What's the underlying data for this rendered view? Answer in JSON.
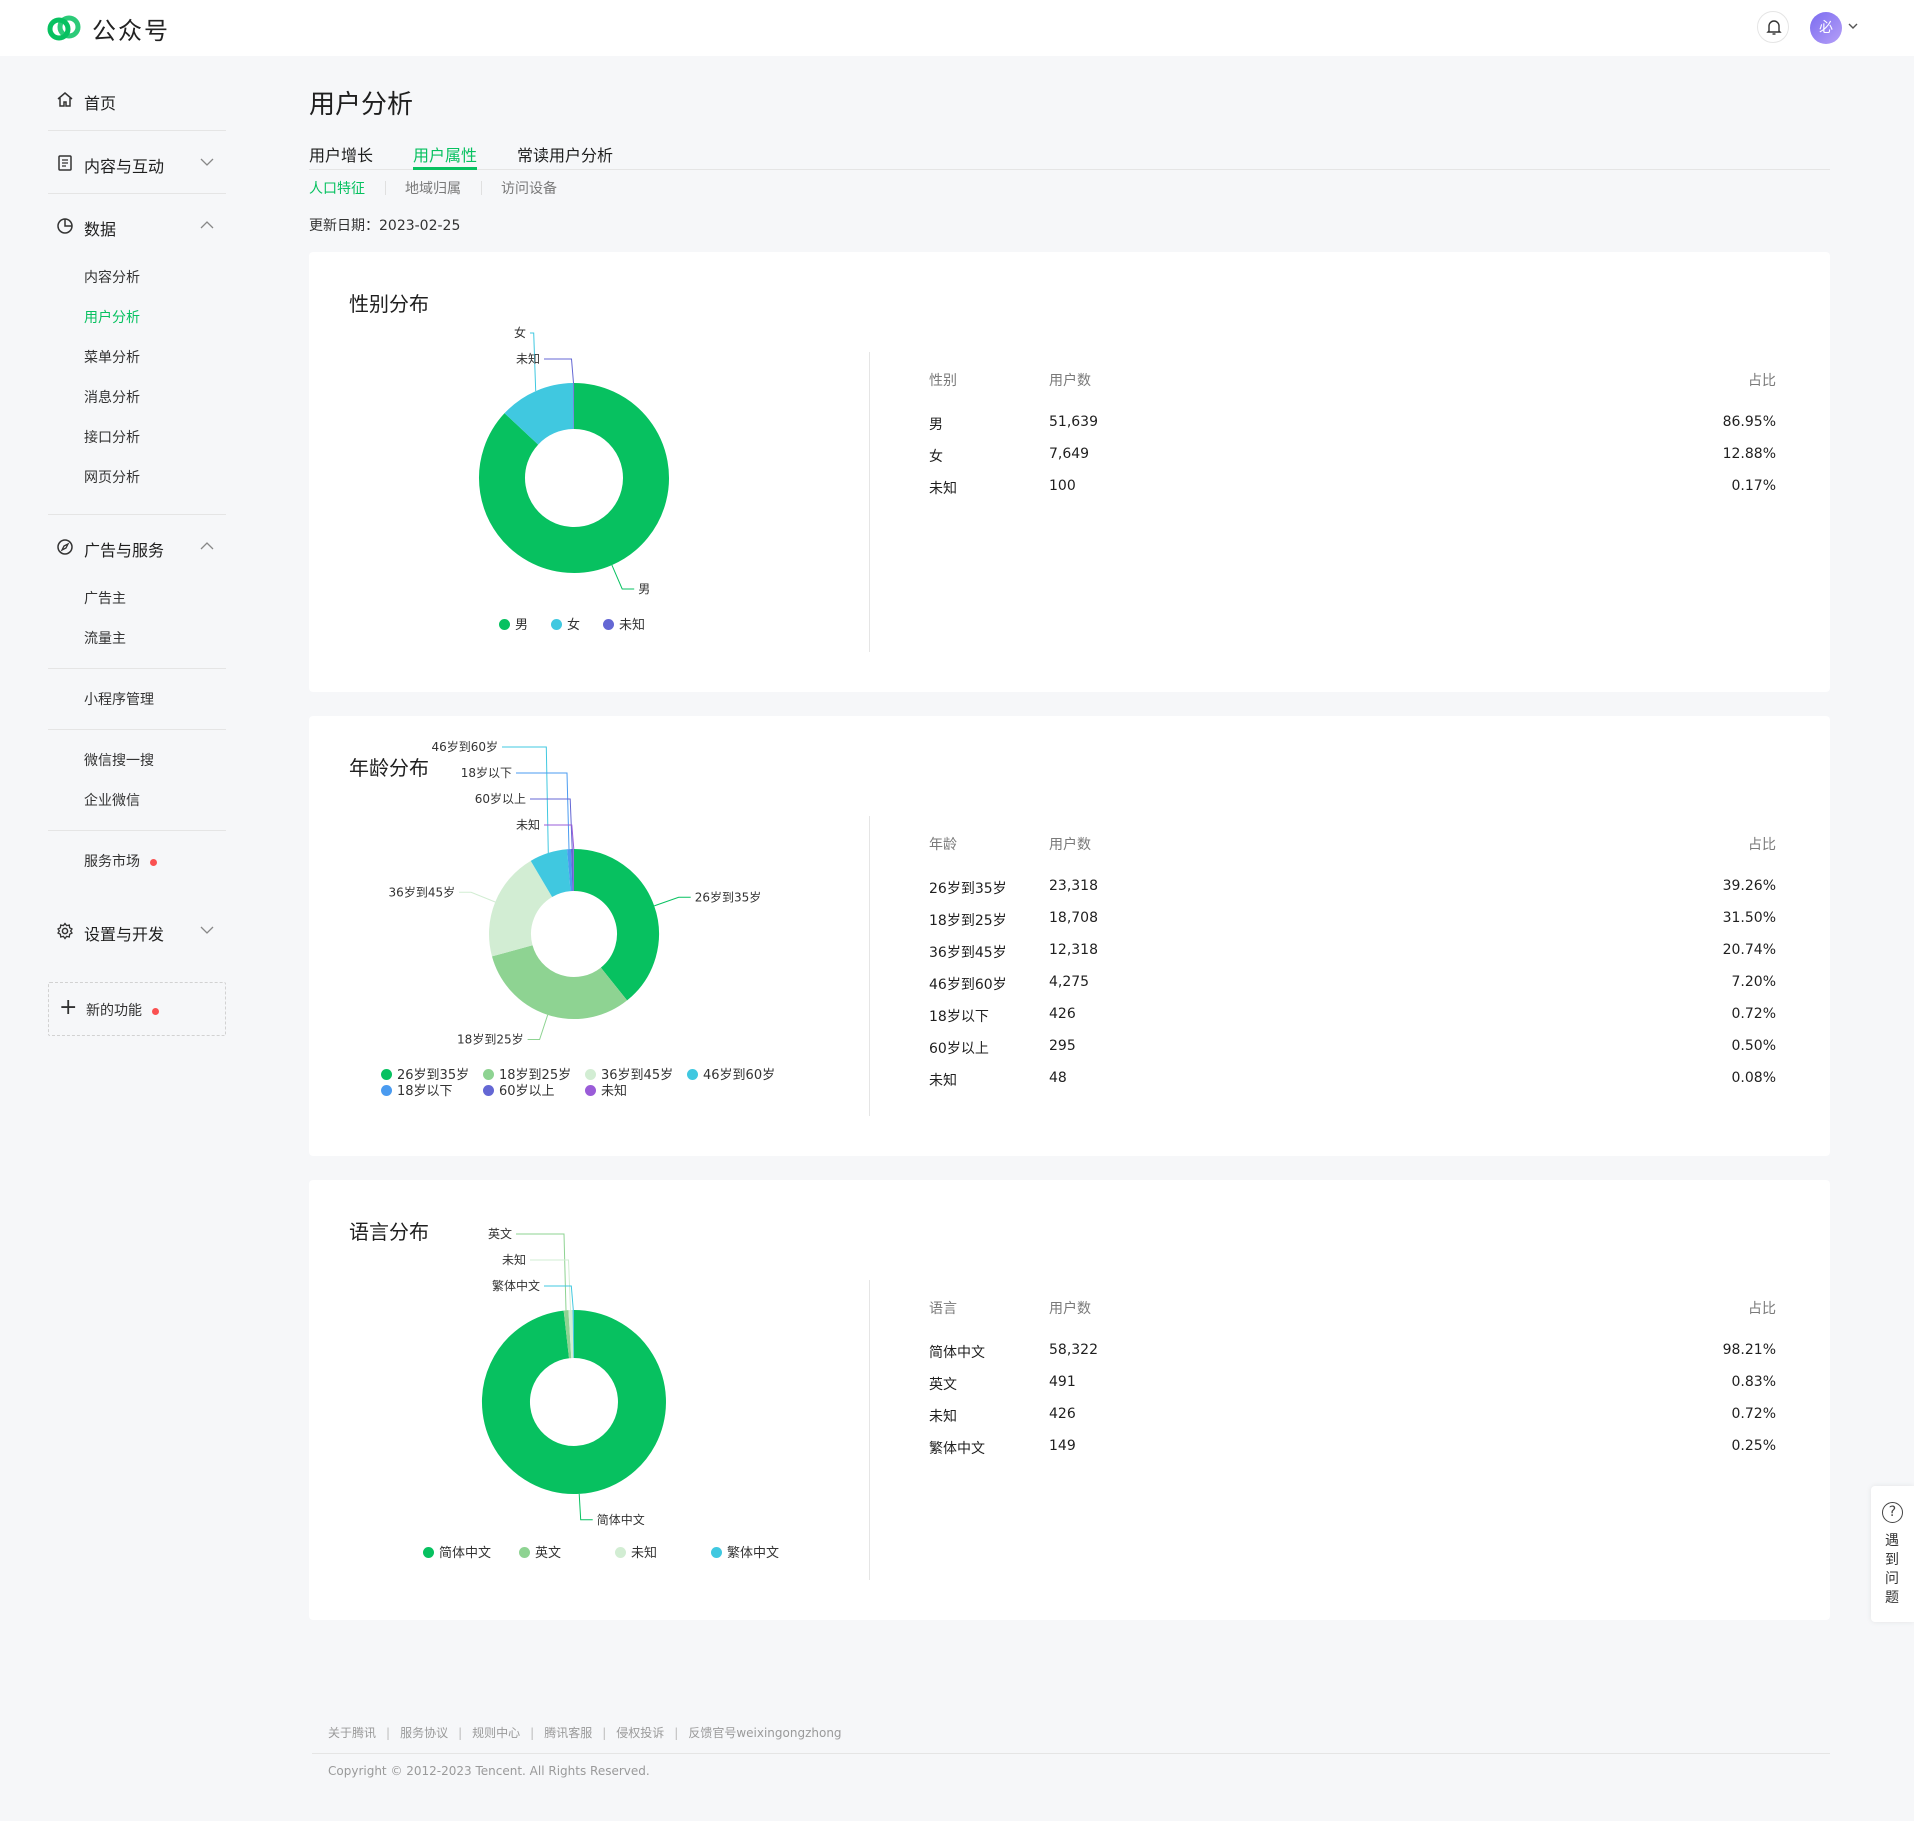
{
  "app": {
    "title": "公众号",
    "avatar_char": "必"
  },
  "sidebar": {
    "home": "首页",
    "content": "内容与互动",
    "data": "数据",
    "data_items": [
      "内容分析",
      "用户分析",
      "菜单分析",
      "消息分析",
      "接口分析",
      "网页分析"
    ],
    "ads": "广告与服务",
    "ads_items": [
      "广告主",
      "流量主"
    ],
    "miniprogram": "小程序管理",
    "search": "微信搜一搜",
    "wework": "企业微信",
    "market": "服务市场",
    "settings": "设置与开发",
    "new_feature": "新的功能"
  },
  "page": {
    "title": "用户分析",
    "tabs": [
      "用户增长",
      "用户属性",
      "常读用户分析"
    ],
    "subtabs": [
      "人口特征",
      "地域归属",
      "访问设备"
    ],
    "update_label": "更新日期：",
    "update_date": "2023-02-25"
  },
  "colors": {
    "accent": "#07c160",
    "female": "#40c8e0",
    "unknown": "#6467d4"
  },
  "gender": {
    "title": "性别分布",
    "headers": [
      "性别",
      "用户数",
      "占比"
    ],
    "rows": [
      {
        "name": "男",
        "count": "51,639",
        "pct": "86.95%"
      },
      {
        "name": "女",
        "count": "7,649",
        "pct": "12.88%"
      },
      {
        "name": "未知",
        "count": "100",
        "pct": "0.17%"
      }
    ],
    "legend": [
      "男",
      "女",
      "未知"
    ]
  },
  "age": {
    "title": "年龄分布",
    "headers": [
      "年龄",
      "用户数",
      "占比"
    ],
    "rows": [
      {
        "name": "26岁到35岁",
        "count": "23,318",
        "pct": "39.26%"
      },
      {
        "name": "18岁到25岁",
        "count": "18,708",
        "pct": "31.50%"
      },
      {
        "name": "36岁到45岁",
        "count": "12,318",
        "pct": "20.74%"
      },
      {
        "name": "46岁到60岁",
        "count": "4,275",
        "pct": "7.20%"
      },
      {
        "name": "18岁以下",
        "count": "426",
        "pct": "0.72%"
      },
      {
        "name": "60岁以上",
        "count": "295",
        "pct": "0.50%"
      },
      {
        "name": "未知",
        "count": "48",
        "pct": "0.08%"
      }
    ],
    "legend": [
      "26岁到35岁",
      "18岁到25岁",
      "36岁到45岁",
      "46岁到60岁",
      "18岁以下",
      "60岁以上",
      "未知"
    ]
  },
  "language": {
    "title": "语言分布",
    "headers": [
      "语言",
      "用户数",
      "占比"
    ],
    "rows": [
      {
        "name": "简体中文",
        "count": "58,322",
        "pct": "98.21%"
      },
      {
        "name": "英文",
        "count": "491",
        "pct": "0.83%"
      },
      {
        "name": "未知",
        "count": "426",
        "pct": "0.72%"
      },
      {
        "name": "繁体中文",
        "count": "149",
        "pct": "0.25%"
      }
    ],
    "legend": [
      "简体中文",
      "英文",
      "未知",
      "繁体中文"
    ]
  },
  "chart_data": [
    {
      "type": "pie",
      "title": "性别分布",
      "categories": [
        "男",
        "女",
        "未知"
      ],
      "values": [
        51639,
        7649,
        100
      ],
      "colors": [
        "#07c160",
        "#40c8e0",
        "#6467d4"
      ]
    },
    {
      "type": "pie",
      "title": "年龄分布",
      "categories": [
        "26岁到35岁",
        "18岁到25岁",
        "36岁到45岁",
        "46岁到60岁",
        "18岁以下",
        "60岁以上",
        "未知"
      ],
      "values": [
        23318,
        18708,
        12318,
        4275,
        426,
        295,
        48
      ],
      "colors": [
        "#07c160",
        "#8ed392",
        "#d2edd3",
        "#40c8e0",
        "#4a9bf0",
        "#6467d4",
        "#9a5cd8"
      ]
    },
    {
      "type": "pie",
      "title": "语言分布",
      "categories": [
        "简体中文",
        "英文",
        "未知",
        "繁体中文"
      ],
      "values": [
        58322,
        491,
        426,
        149
      ],
      "colors": [
        "#07c160",
        "#8ed392",
        "#d2edd3",
        "#40c8e0"
      ]
    }
  ],
  "help": {
    "label": "遇到问题"
  },
  "footer": {
    "links": [
      "关于腾讯",
      "服务协议",
      "规则中心",
      "腾讯客服",
      "侵权投诉",
      "反馈官号weixingongzhong"
    ],
    "copyright": "Copyright © 2012-2023 Tencent. All Rights Reserved."
  }
}
